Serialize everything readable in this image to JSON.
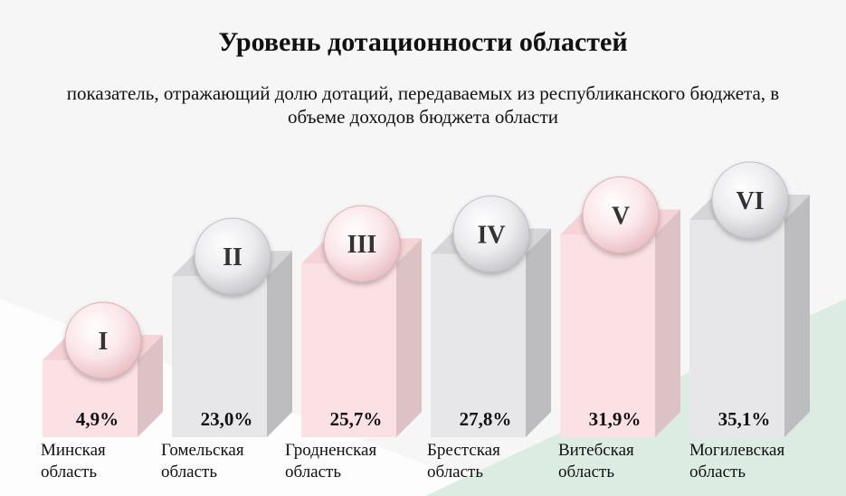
{
  "title": "Уровень дотационности областей",
  "subtitle": "показатель, отражающий долю дотаций, передаваемых из республиканского бюджета, в объеме доходов бюджета области",
  "colors": {
    "pink_front": "#fce1e4",
    "pink_top": "#f5d3d7",
    "pink_side": "#dcc2c5",
    "grey_front": "#e7e7ea",
    "grey_top": "#d6d6d9",
    "grey_side": "#bdbdc0",
    "circle_pink": "#f7d7db",
    "circle_grey": "#e3e3e6",
    "green_bg": "#d9ebe0"
  },
  "chart_data": {
    "type": "bar",
    "title": "Уровень дотационности областей",
    "subtitle": "показатель, отражающий долю дотаций, передаваемых из республиканского бюджета, в объеме доходов бюджета области",
    "unit": "%",
    "categories": [
      "Минская область",
      "Гомельская область",
      "Гродненская область",
      "Брестская область",
      "Витебская область",
      "Могилевская область"
    ],
    "categories_lines": [
      [
        "Минская",
        "область"
      ],
      [
        "Гомельская",
        "область"
      ],
      [
        "Гродненская",
        "область"
      ],
      [
        "Брестская",
        "область"
      ],
      [
        "Витебская",
        "область"
      ],
      [
        "Могилевская",
        "область"
      ]
    ],
    "values": [
      4.9,
      23.0,
      25.7,
      27.8,
      31.9,
      35.1
    ],
    "value_labels": [
      "4,9%",
      "23,0%",
      "25,7%",
      "27,8%",
      "31,9%",
      "35,1%"
    ],
    "ranks": [
      "I",
      "II",
      "III",
      "IV",
      "V",
      "VI"
    ],
    "styles": [
      "pink",
      "grey",
      "pink",
      "grey",
      "pink",
      "grey"
    ],
    "axes_shown": false,
    "legend": "none"
  }
}
